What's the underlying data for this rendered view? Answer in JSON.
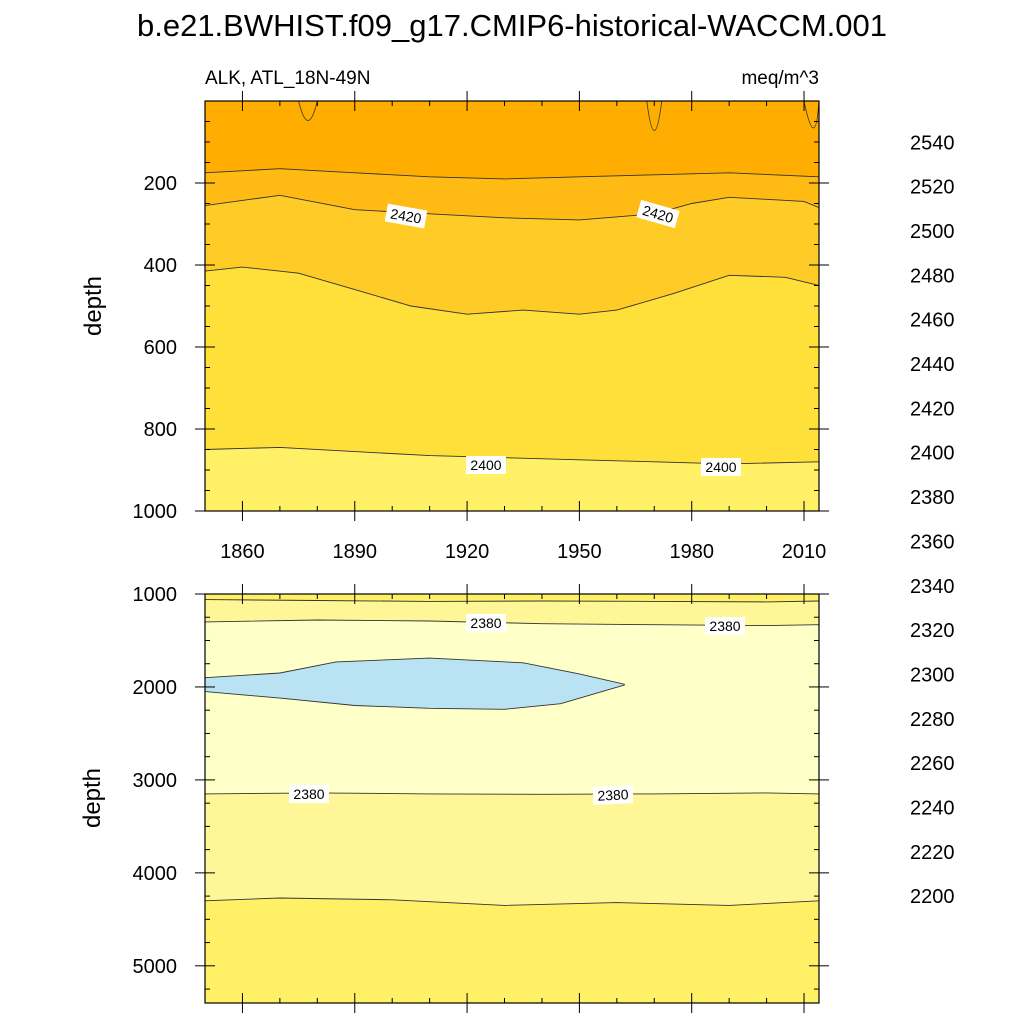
{
  "chart_data": [
    {
      "type": "heatmap",
      "panel": "upper",
      "title": "b.e21.BWHIST.f09_g17.CMIP6-historical-WACCM.001",
      "left_string": "ALK, ATL_18N-49N",
      "right_string": "meq/m^3",
      "xlabel": "",
      "ylabel": "depth",
      "xlim": [
        1850,
        2014
      ],
      "ylim": [
        1000,
        0
      ],
      "x_ticks": [
        1860,
        1890,
        1920,
        1950,
        1980,
        2010
      ],
      "y_ticks": [
        200,
        400,
        600,
        800,
        1000
      ],
      "contour_labels": [
        "2420",
        "2420",
        "2400",
        "2400"
      ],
      "bands": [
        {
          "range": "2430-2440",
          "color": "#ffad00"
        },
        {
          "range": "2420-2430",
          "color": "#ffbb13"
        },
        {
          "range": "2410-2420",
          "color": "#ffcb27"
        },
        {
          "range": "2400-2410",
          "color": "#ffdf3a"
        },
        {
          "range": "2390-2400",
          "color": "#fff066"
        }
      ],
      "contour_lines": [
        {
          "level": 2430,
          "x": [
            1850,
            1870,
            1890,
            1910,
            1930,
            1950,
            1970,
            1990,
            2014
          ],
          "depth": [
            175,
            165,
            175,
            185,
            190,
            185,
            180,
            175,
            185
          ]
        },
        {
          "level": 2420,
          "x": [
            1850,
            1870,
            1890,
            1910,
            1930,
            1950,
            1970,
            1980,
            1990,
            2010,
            2014
          ],
          "depth": [
            255,
            230,
            265,
            275,
            285,
            290,
            275,
            250,
            235,
            245,
            260
          ]
        },
        {
          "level": 2410,
          "x": [
            1850,
            1860,
            1875,
            1890,
            1905,
            1920,
            1935,
            1950,
            1960,
            1975,
            1990,
            2005,
            2014
          ],
          "depth": [
            415,
            405,
            420,
            460,
            500,
            520,
            510,
            520,
            510,
            470,
            425,
            430,
            450
          ]
        },
        {
          "level": 2400,
          "x": [
            1850,
            1870,
            1890,
            1910,
            1930,
            1950,
            1970,
            1990,
            2014
          ],
          "depth": [
            850,
            845,
            855,
            865,
            870,
            875,
            880,
            885,
            880
          ]
        }
      ]
    },
    {
      "type": "heatmap",
      "panel": "lower",
      "xlabel": "",
      "ylabel": "depth",
      "xlim": [
        1850,
        2014
      ],
      "ylim": [
        5400,
        1000
      ],
      "y_ticks": [
        1000,
        2000,
        3000,
        4000,
        5000
      ],
      "contour_labels": [
        "2380",
        "2380",
        "2380",
        "2380"
      ],
      "bands": [
        {
          "range": "2380-2390",
          "color": "#fff797"
        },
        {
          "range": "2370-2380",
          "color": "#ffffc8"
        },
        {
          "range": "2360-2370",
          "color": "#b9e3f3"
        },
        {
          "range": "2390-2400",
          "color": "#fff066"
        }
      ],
      "contour_lines": [
        {
          "level": 2390,
          "x": [
            1850,
            1880,
            1910,
            1940,
            1970,
            2000,
            2014
          ],
          "depth": [
            1060,
            1070,
            1080,
            1075,
            1080,
            1085,
            1075
          ]
        },
        {
          "level": 2380,
          "x": [
            1850,
            1880,
            1910,
            1940,
            1970,
            2000,
            2014
          ],
          "depth": [
            1300,
            1280,
            1290,
            1320,
            1330,
            1340,
            1330
          ]
        },
        {
          "level": 2380,
          "x": [
            1850,
            1880,
            1910,
            1940,
            1970,
            2000,
            2014
          ],
          "depth": [
            3150,
            3140,
            3150,
            3155,
            3150,
            3140,
            3150
          ]
        },
        {
          "level": 2390,
          "x": [
            1850,
            1870,
            1900,
            1930,
            1960,
            1990,
            2014
          ],
          "depth": [
            4300,
            4270,
            4290,
            4350,
            4320,
            4350,
            4300
          ]
        }
      ],
      "blob_2360": {
        "top": {
          "x": [
            1850,
            1870,
            1885,
            1910,
            1935,
            1950,
            1962
          ],
          "depth": [
            1900,
            1850,
            1730,
            1690,
            1740,
            1860,
            1970
          ]
        },
        "bottom": {
          "x": [
            1850,
            1870,
            1890,
            1910,
            1930,
            1945,
            1962
          ],
          "depth": [
            2050,
            2120,
            2200,
            2230,
            2240,
            2180,
            1980
          ]
        }
      }
    }
  ],
  "colorbar": {
    "tick_labels": [
      "2540",
      "2520",
      "2500",
      "2480",
      "2460",
      "2440",
      "2420",
      "2400",
      "2380",
      "2360",
      "2340",
      "2320",
      "2300",
      "2280",
      "2260",
      "2240",
      "2220",
      "2200"
    ],
    "colors_top_to_bottom": [
      "#ffb3b8",
      "#ec6f6f",
      "#de3232",
      "#cd0000",
      "#dd0000",
      "#ee0000",
      "#ff0000",
      "#ff1e00",
      "#ff3c00",
      "#ff5a00",
      "#ff6e00",
      "#ff8300",
      "#ff9600",
      "#ffa500",
      "#ffb200",
      "#ffbf14",
      "#ffcb27",
      "#ffdc3a",
      "#ffed5d",
      "#fff797",
      "#ffffc8",
      "#b9e3f3",
      "#a2d6ee",
      "#8bcbee",
      "#62c4f3",
      "#2dc2fb",
      "#00b3ff",
      "#009bff",
      "#1587ff",
      "#2778f6",
      "#2b70e8",
      "#2c62da",
      "#3a55e5",
      "#2b4be8",
      "#1a33ee",
      "#0a15f5",
      "#0000ff",
      "#2b0aee",
      "#4c17f0",
      "#6b1ef0",
      "#8522e8"
    ]
  }
}
